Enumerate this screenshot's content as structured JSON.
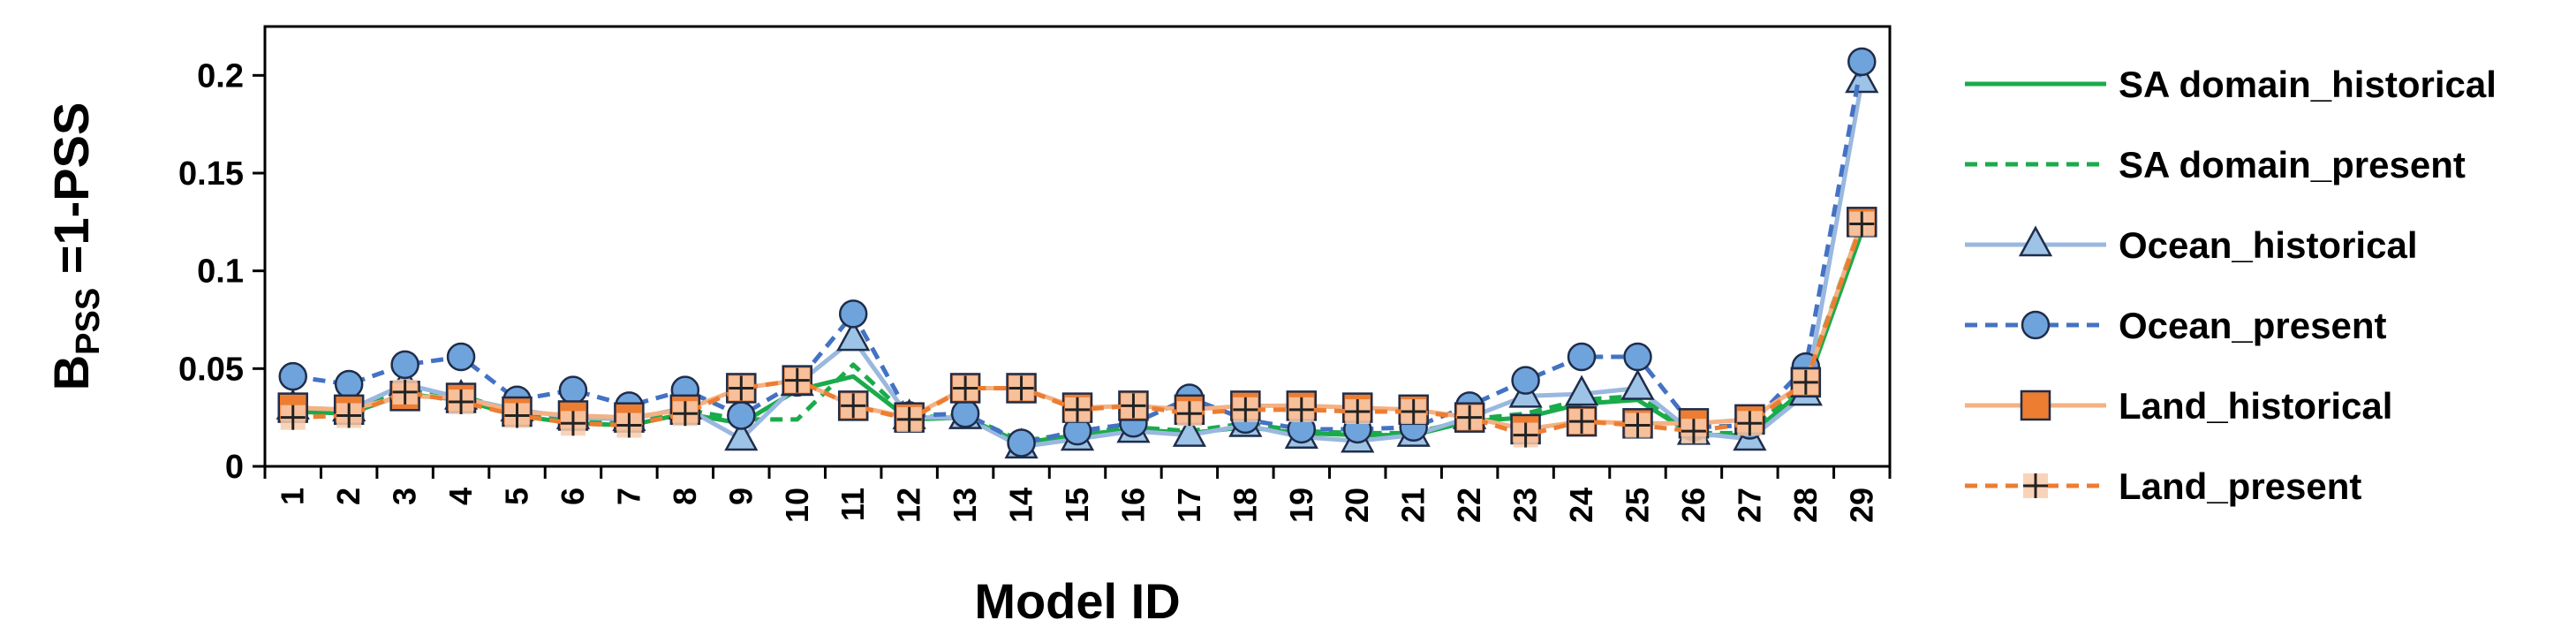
{
  "chart_data": {
    "type": "line",
    "xlabel": "Model ID",
    "ylabel": {
      "base": "B",
      "sub": "PSS",
      "rest": " =1-PSS"
    },
    "ylim": [
      0,
      0.225
    ],
    "yticks": [
      0,
      0.05,
      0.1,
      0.15,
      0.2
    ],
    "ytick_labels": [
      "0",
      "0.05",
      "0.1",
      "0.15",
      "0.2"
    ],
    "categories": [
      "1",
      "2",
      "3",
      "4",
      "5",
      "6",
      "7",
      "8",
      "9",
      "10",
      "11",
      "12",
      "13",
      "14",
      "15",
      "16",
      "17",
      "18",
      "19",
      "20",
      "21",
      "22",
      "23",
      "24",
      "25",
      "26",
      "27",
      "28",
      "29"
    ],
    "grid": false,
    "legend_position": "right",
    "series": [
      {
        "name": "SA domain_historical",
        "color": "#1aab4b",
        "dash": "solid",
        "marker": "none",
        "values": [
          0.028,
          0.027,
          0.037,
          0.034,
          0.026,
          0.022,
          0.021,
          0.027,
          0.022,
          0.039,
          0.046,
          0.024,
          0.025,
          0.012,
          0.016,
          0.019,
          0.017,
          0.02,
          0.017,
          0.016,
          0.016,
          0.023,
          0.025,
          0.032,
          0.034,
          0.016,
          0.016,
          0.04,
          0.12
        ]
      },
      {
        "name": "SA domain_present",
        "color": "#1aab4b",
        "dash": "dash",
        "marker": "none",
        "values": [
          0.03,
          0.028,
          0.04,
          0.036,
          0.028,
          0.024,
          0.023,
          0.029,
          0.024,
          0.024,
          0.052,
          0.025,
          0.026,
          0.013,
          0.017,
          0.02,
          0.018,
          0.022,
          0.018,
          0.017,
          0.017,
          0.024,
          0.027,
          0.034,
          0.036,
          0.017,
          0.017,
          0.044,
          0.125
        ]
      },
      {
        "name": "Ocean_historical",
        "color": "#9ab8df",
        "dash": "solid",
        "marker": "triangle",
        "values": [
          0.03,
          0.029,
          0.042,
          0.035,
          0.029,
          0.025,
          0.024,
          0.03,
          0.014,
          0.042,
          0.065,
          0.025,
          0.025,
          0.01,
          0.014,
          0.018,
          0.016,
          0.021,
          0.015,
          0.013,
          0.016,
          0.025,
          0.036,
          0.037,
          0.04,
          0.017,
          0.014,
          0.037,
          0.197
        ]
      },
      {
        "name": "Ocean_present",
        "color": "#4472c4",
        "dash": "dash",
        "marker": "circle",
        "values": [
          0.046,
          0.042,
          0.052,
          0.056,
          0.034,
          0.039,
          0.031,
          0.039,
          0.026,
          0.043,
          0.078,
          0.026,
          0.027,
          0.012,
          0.018,
          0.022,
          0.035,
          0.024,
          0.019,
          0.019,
          0.02,
          0.031,
          0.044,
          0.056,
          0.056,
          0.02,
          0.021,
          0.051,
          0.207
        ]
      },
      {
        "name": "Land_historical",
        "color": "#f4b183",
        "dash": "solid",
        "marker": "square",
        "values": [
          0.03,
          0.029,
          0.036,
          0.035,
          0.028,
          0.026,
          0.025,
          0.029,
          0.04,
          0.044,
          0.031,
          0.025,
          0.04,
          0.04,
          0.03,
          0.031,
          0.029,
          0.031,
          0.031,
          0.03,
          0.029,
          0.025,
          0.019,
          0.023,
          0.022,
          0.022,
          0.024,
          0.043,
          0.125
        ]
      },
      {
        "name": "Land_present",
        "color": "#ed7d31",
        "dash": "dash",
        "marker": "plus",
        "values": [
          0.025,
          0.026,
          0.038,
          0.033,
          0.026,
          0.022,
          0.021,
          0.027,
          0.04,
          0.044,
          0.031,
          0.024,
          0.04,
          0.04,
          0.029,
          0.031,
          0.027,
          0.029,
          0.029,
          0.028,
          0.028,
          0.025,
          0.016,
          0.023,
          0.021,
          0.018,
          0.022,
          0.043,
          0.124
        ]
      }
    ]
  }
}
